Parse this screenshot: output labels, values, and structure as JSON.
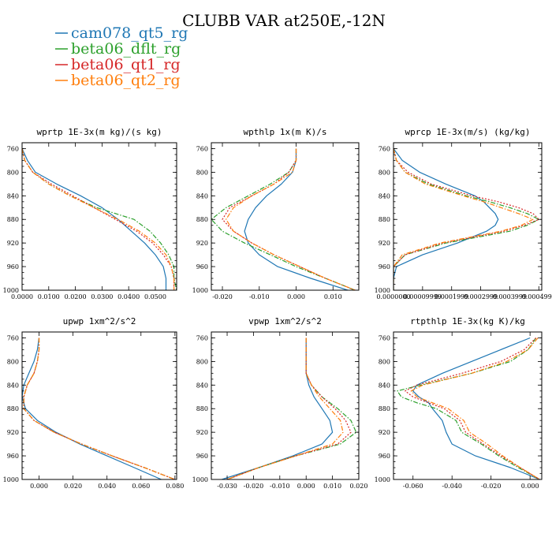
{
  "title": "CLUBB VAR at250E,-12N",
  "legend": [
    {
      "label": "cam078_qt5_rg",
      "color": "#1f77b4",
      "dash": "solid"
    },
    {
      "label": "beta06_dflt_rg",
      "color": "#2ca02c",
      "dash": "dashdot"
    },
    {
      "label": "beta06_qt1_rg",
      "color": "#d62728",
      "dash": "dot"
    },
    {
      "label": "beta06_qt2_rg",
      "color": "#ff7f0e",
      "dash": "dashdot"
    }
  ],
  "chart_data": [
    {
      "type": "line",
      "title": "wprtp  1E-3x(m kg)/(s kg)",
      "xlim": [
        0.0,
        0.058
      ],
      "ylim": [
        1000,
        750
      ],
      "xticks": [
        0.0,
        0.01,
        0.02,
        0.03,
        0.04,
        0.05
      ],
      "xtick_labels": [
        "0.0000",
        "0.0100",
        "0.0200",
        "0.0300",
        "0.0400",
        "0.0500"
      ],
      "yticks": [
        760,
        800,
        840,
        880,
        920,
        960,
        1000
      ],
      "y": [
        760,
        780,
        800,
        820,
        840,
        860,
        880,
        900,
        920,
        940,
        960,
        980,
        1000
      ],
      "series": [
        {
          "name": "cam078_qt5_rg",
          "values": [
            0.0,
            0.002,
            0.005,
            0.013,
            0.022,
            0.03,
            0.036,
            0.041,
            0.046,
            0.05,
            0.053,
            0.054,
            0.054
          ]
        },
        {
          "name": "beta06_dflt_rg",
          "values": [
            0.0,
            0.001,
            0.004,
            0.01,
            0.018,
            0.028,
            0.042,
            0.048,
            0.052,
            0.055,
            0.057,
            0.057,
            0.058
          ]
        },
        {
          "name": "beta06_qt1_rg",
          "values": [
            0.0,
            0.001,
            0.004,
            0.011,
            0.019,
            0.027,
            0.035,
            0.043,
            0.049,
            0.053,
            0.056,
            0.057,
            0.057
          ]
        },
        {
          "name": "beta06_qt2_rg",
          "values": [
            0.0,
            0.001,
            0.004,
            0.01,
            0.018,
            0.027,
            0.036,
            0.044,
            0.05,
            0.054,
            0.056,
            0.057,
            0.057
          ]
        }
      ]
    },
    {
      "type": "line",
      "title": "wpthlp  1x(m K)/s",
      "xlim": [
        -0.023,
        0.017
      ],
      "ylim": [
        1000,
        750
      ],
      "xticks": [
        -0.02,
        -0.01,
        0.0,
        0.01
      ],
      "xtick_labels": [
        "-0.020",
        "-0.010",
        "0.000",
        "0.010"
      ],
      "yticks": [
        760,
        800,
        840,
        880,
        920,
        960,
        1000
      ],
      "y": [
        760,
        780,
        800,
        820,
        840,
        860,
        880,
        900,
        920,
        940,
        960,
        980,
        1000
      ],
      "series": [
        {
          "name": "cam078_qt5_rg",
          "values": [
            0.0,
            0.0,
            -0.001,
            -0.004,
            -0.008,
            -0.011,
            -0.013,
            -0.014,
            -0.013,
            -0.01,
            -0.005,
            0.004,
            0.014
          ]
        },
        {
          "name": "beta06_dflt_rg",
          "values": [
            0.0,
            0.0,
            -0.002,
            -0.007,
            -0.013,
            -0.019,
            -0.023,
            -0.02,
            -0.014,
            -0.007,
            0.0,
            0.008,
            0.016
          ]
        },
        {
          "name": "beta06_qt1_rg",
          "values": [
            0.0,
            0.0,
            -0.002,
            -0.006,
            -0.012,
            -0.018,
            -0.02,
            -0.017,
            -0.012,
            -0.006,
            0.001,
            0.008,
            0.016
          ]
        },
        {
          "name": "beta06_qt2_rg",
          "values": [
            0.0,
            0.0,
            -0.001,
            -0.006,
            -0.012,
            -0.017,
            -0.019,
            -0.017,
            -0.012,
            -0.006,
            0.001,
            0.008,
            0.016
          ]
        }
      ]
    },
    {
      "type": "line",
      "title": "wprcp  1E-3x(m/s) (kg/kg)",
      "xlim": [
        0.0,
        0.00051
      ],
      "ylim": [
        1000,
        750
      ],
      "xticks": [
        0.0,
        0.0001,
        0.0002,
        0.0003,
        0.0004,
        0.0005
      ],
      "xtick_labels": [
        "0.0000000",
        "0.00009999",
        "0.0001999",
        "0.0002999",
        "0.0003999",
        "0.0004999"
      ],
      "xtick_labels_note": "labels overlap in original",
      "yticks": [
        760,
        800,
        840,
        880,
        920,
        960,
        1000
      ],
      "y": [
        760,
        780,
        800,
        820,
        840,
        850,
        860,
        870,
        880,
        890,
        900,
        920,
        940,
        960,
        980,
        1000
      ],
      "series": [
        {
          "name": "cam078_qt5_rg",
          "values": [
            0.0,
            3e-05,
            9e-05,
            0.00018,
            0.00028,
            0.00031,
            0.00033,
            0.00035,
            0.00036,
            0.00035,
            0.00032,
            0.00022,
            0.0001,
            1e-05,
            0.0,
            0.0
          ]
        },
        {
          "name": "beta06_dflt_rg",
          "values": [
            0.0,
            1e-05,
            4e-05,
            0.00012,
            0.00025,
            0.00033,
            0.0004,
            0.00046,
            0.0005,
            0.00046,
            0.0004,
            0.00018,
            4e-05,
            0.0,
            0.0,
            0.0
          ]
        },
        {
          "name": "beta06_qt1_rg",
          "values": [
            0.0,
            1e-05,
            5e-05,
            0.00013,
            0.00027,
            0.00036,
            0.00043,
            0.00048,
            0.0005,
            0.00045,
            0.00038,
            0.00017,
            4e-05,
            0.0,
            0.0,
            0.0
          ]
        },
        {
          "name": "beta06_qt2_rg",
          "values": [
            0.0,
            1e-05,
            4e-05,
            0.00011,
            0.00024,
            0.00031,
            0.00037,
            0.00043,
            0.00048,
            0.00044,
            0.00037,
            0.00016,
            3e-05,
            0.0,
            0.0,
            0.0
          ]
        }
      ]
    },
    {
      "type": "line",
      "title": "upwp  1xm^2/s^2",
      "xlim": [
        -0.01,
        0.081
      ],
      "ylim": [
        1000,
        750
      ],
      "xticks": [
        0.0,
        0.02,
        0.04,
        0.06,
        0.08
      ],
      "xtick_labels": [
        "0.000",
        "0.020",
        "0.040",
        "0.060",
        "0.080"
      ],
      "yticks": [
        760,
        800,
        840,
        880,
        920,
        960,
        1000
      ],
      "y": [
        760,
        780,
        800,
        820,
        840,
        860,
        880,
        900,
        920,
        940,
        960,
        980,
        1000
      ],
      "series": [
        {
          "name": "cam078_qt5_rg",
          "values": [
            0.0,
            -0.001,
            -0.003,
            -0.006,
            -0.009,
            -0.01,
            -0.008,
            -0.001,
            0.01,
            0.024,
            0.04,
            0.056,
            0.072
          ]
        },
        {
          "name": "beta06_dflt_rg",
          "values": [
            0.0,
            0.0,
            -0.001,
            -0.003,
            -0.007,
            -0.009,
            -0.009,
            -0.003,
            0.009,
            0.025,
            0.043,
            0.062,
            0.08
          ]
        },
        {
          "name": "beta06_qt1_rg",
          "values": [
            0.0,
            0.0,
            -0.001,
            -0.003,
            -0.007,
            -0.009,
            -0.009,
            -0.003,
            0.009,
            0.025,
            0.043,
            0.062,
            0.08
          ]
        },
        {
          "name": "beta06_qt2_rg",
          "values": [
            0.0,
            0.0,
            -0.001,
            -0.003,
            -0.007,
            -0.009,
            -0.009,
            -0.003,
            0.009,
            0.025,
            0.043,
            0.062,
            0.08
          ]
        }
      ]
    },
    {
      "type": "line",
      "title": "vpwp  1xm^2/s^2",
      "xlim": [
        -0.036,
        0.02
      ],
      "ylim": [
        1000,
        750
      ],
      "xticks": [
        -0.03,
        -0.02,
        -0.01,
        0.0,
        0.01,
        0.02
      ],
      "xtick_labels": [
        "-0.030",
        "-0.020",
        "-0.010",
        "0.000",
        "0.010",
        "0.020"
      ],
      "yticks": [
        760,
        800,
        840,
        880,
        920,
        960,
        1000
      ],
      "y": [
        760,
        780,
        800,
        820,
        840,
        860,
        880,
        900,
        920,
        940,
        960,
        980,
        1000
      ],
      "series": [
        {
          "name": "cam078_qt5_rg",
          "values": [
            0.0,
            0.0,
            0.0,
            0.0,
            0.001,
            0.003,
            0.006,
            0.009,
            0.01,
            0.006,
            -0.005,
            -0.018,
            -0.032
          ]
        },
        {
          "name": "beta06_dflt_rg",
          "values": [
            0.0,
            0.0,
            0.0,
            0.0,
            0.002,
            0.006,
            0.012,
            0.017,
            0.019,
            0.013,
            -0.004,
            -0.018,
            -0.03
          ]
        },
        {
          "name": "beta06_qt1_rg",
          "values": [
            0.0,
            0.0,
            0.0,
            0.0,
            0.002,
            0.006,
            0.011,
            0.015,
            0.017,
            0.012,
            -0.004,
            -0.018,
            -0.03
          ]
        },
        {
          "name": "beta06_qt2_rg",
          "values": [
            0.0,
            0.0,
            0.0,
            0.0,
            0.002,
            0.005,
            0.009,
            0.013,
            0.014,
            0.01,
            -0.004,
            -0.018,
            -0.03
          ]
        }
      ]
    },
    {
      "type": "line",
      "title": "rtpthlp  1E-3x(kg K)/kg",
      "xlim": [
        -0.07,
        0.006
      ],
      "ylim": [
        1000,
        750
      ],
      "xticks": [
        -0.06,
        -0.04,
        -0.02,
        0.0
      ],
      "xtick_labels": [
        "-0.060",
        "-0.040",
        "-0.020",
        "0.000"
      ],
      "yticks": [
        760,
        800,
        840,
        880,
        920,
        960,
        1000
      ],
      "y": [
        760,
        780,
        800,
        820,
        840,
        850,
        860,
        870,
        880,
        900,
        920,
        940,
        960,
        980,
        1000
      ],
      "series": [
        {
          "name": "cam078_qt5_rg",
          "values": [
            0.0,
            -0.015,
            -0.03,
            -0.045,
            -0.058,
            -0.06,
            -0.057,
            -0.052,
            -0.05,
            -0.045,
            -0.043,
            -0.04,
            -0.028,
            -0.01,
            0.005
          ]
        },
        {
          "name": "beta06_dflt_rg",
          "values": [
            0.003,
            -0.001,
            -0.01,
            -0.03,
            -0.056,
            -0.068,
            -0.066,
            -0.058,
            -0.048,
            -0.038,
            -0.035,
            -0.025,
            -0.016,
            -0.006,
            0.005
          ]
        },
        {
          "name": "beta06_qt1_rg",
          "values": [
            0.003,
            -0.003,
            -0.015,
            -0.035,
            -0.058,
            -0.064,
            -0.06,
            -0.052,
            -0.044,
            -0.036,
            -0.033,
            -0.024,
            -0.015,
            -0.005,
            0.005
          ]
        },
        {
          "name": "beta06_qt2_rg",
          "values": [
            0.004,
            -0.001,
            -0.012,
            -0.03,
            -0.055,
            -0.061,
            -0.058,
            -0.05,
            -0.042,
            -0.034,
            -0.031,
            -0.022,
            -0.014,
            -0.005,
            0.005
          ]
        }
      ]
    }
  ]
}
